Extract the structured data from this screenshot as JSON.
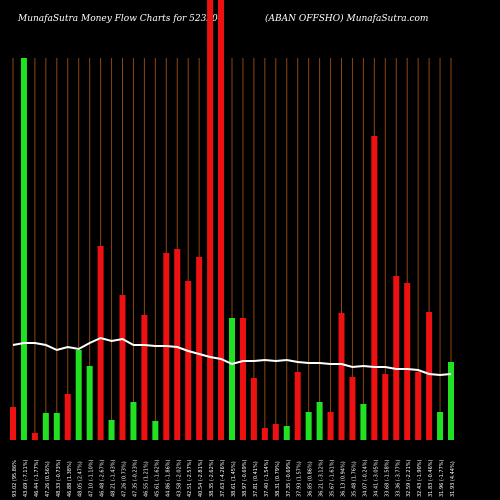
{
  "header": {
    "left": "MunafaSutra  Money Flow  Charts for 523204",
    "right": "(ABAN   OFFSHO) MunafaSutra.com"
  },
  "colors": {
    "background": "#000000",
    "grid": "#8B4513",
    "up": "#22e022",
    "down": "#ee1111",
    "line": "#ffffff",
    "text": "#ffffff"
  },
  "chart_data": {
    "type": "bar",
    "subtype": "bar-with-line-overlay",
    "title": "MunafaSutra  Money Flow  Charts for 523204",
    "grid": true,
    "values": [
      33,
      382,
      7,
      27,
      27,
      46,
      90,
      74,
      194,
      20,
      145,
      38,
      125,
      19,
      187,
      191,
      159,
      183,
      440,
      440,
      122,
      122,
      62,
      12,
      16,
      14,
      68,
      28,
      38,
      28,
      127,
      63,
      36,
      304,
      66,
      164,
      157,
      68,
      128,
      28,
      78
    ],
    "colors": [
      "red",
      "green",
      "red",
      "green",
      "green",
      "red",
      "green",
      "green",
      "red",
      "green",
      "red",
      "green",
      "red",
      "green",
      "red",
      "red",
      "red",
      "red",
      "red",
      "red",
      "green",
      "red",
      "red",
      "red",
      "red",
      "green",
      "red",
      "green",
      "green",
      "red",
      "red",
      "red",
      "green",
      "red",
      "red",
      "red",
      "red",
      "red",
      "red",
      "green",
      "green"
    ],
    "line": [
      95,
      97,
      97,
      95,
      90,
      93,
      91,
      97,
      102,
      99,
      101,
      95,
      95,
      94,
      94,
      93,
      89,
      86,
      83,
      81,
      76,
      79,
      79,
      80,
      79,
      80,
      78,
      77,
      77,
      76,
      76,
      73,
      74,
      73,
      73,
      71,
      71,
      70,
      66,
      65,
      66
    ],
    "x_labels": [
      "93.02 (95.86%",
      "43.69 (-7.11%)",
      "46.44 (-1.77%)",
      "47.26 (0.56%)",
      "48.33 (-0.73%)",
      "46.88 (1.38%)",
      "48.05 (2.47%)",
      "47.10 (-1.10%)",
      "46.48 (-2.67%)",
      "48.21 (-1.43%)",
      "47.26 (0.73%)",
      "47.35 (-0.23%)",
      "46.55 (1.21%)",
      "45.61 (-1.62%)",
      "44.86 (-1.86%)",
      "43.58 (-2.02%)",
      "42.51 (-2.57%)",
      "40.54 (-2.81%)",
      "38.35 (-2.62%)",
      "37.63 (-4.26%)",
      "38.61 (1.45%)",
      "38.97 (-0.69%)",
      "37.81 (0.41%)",
      "37.40 (-1.54%)",
      "38.31 (0.79%)",
      "37.35 (-0.69%)",
      "37.93 (1.57%)",
      "36.85 (0.86%)",
      "36.21 (-3.12%)",
      "35.67 (-1.61%)",
      "36.13 (0.94%)",
      "35.48 (1.76%)",
      "34.07 (-0.24%)",
      "34.41 (-3.05%)",
      "33.68 (-1.58%)",
      "33.36 (-3.77%)",
      "32.59 (-2.21%)",
      "32.43 (-1.90%)",
      "31.83 (-0.46%)",
      "31.96 (-1.77%)",
      "31.93 (4.44%)"
    ],
    "ylim": [
      0,
      440
    ]
  }
}
